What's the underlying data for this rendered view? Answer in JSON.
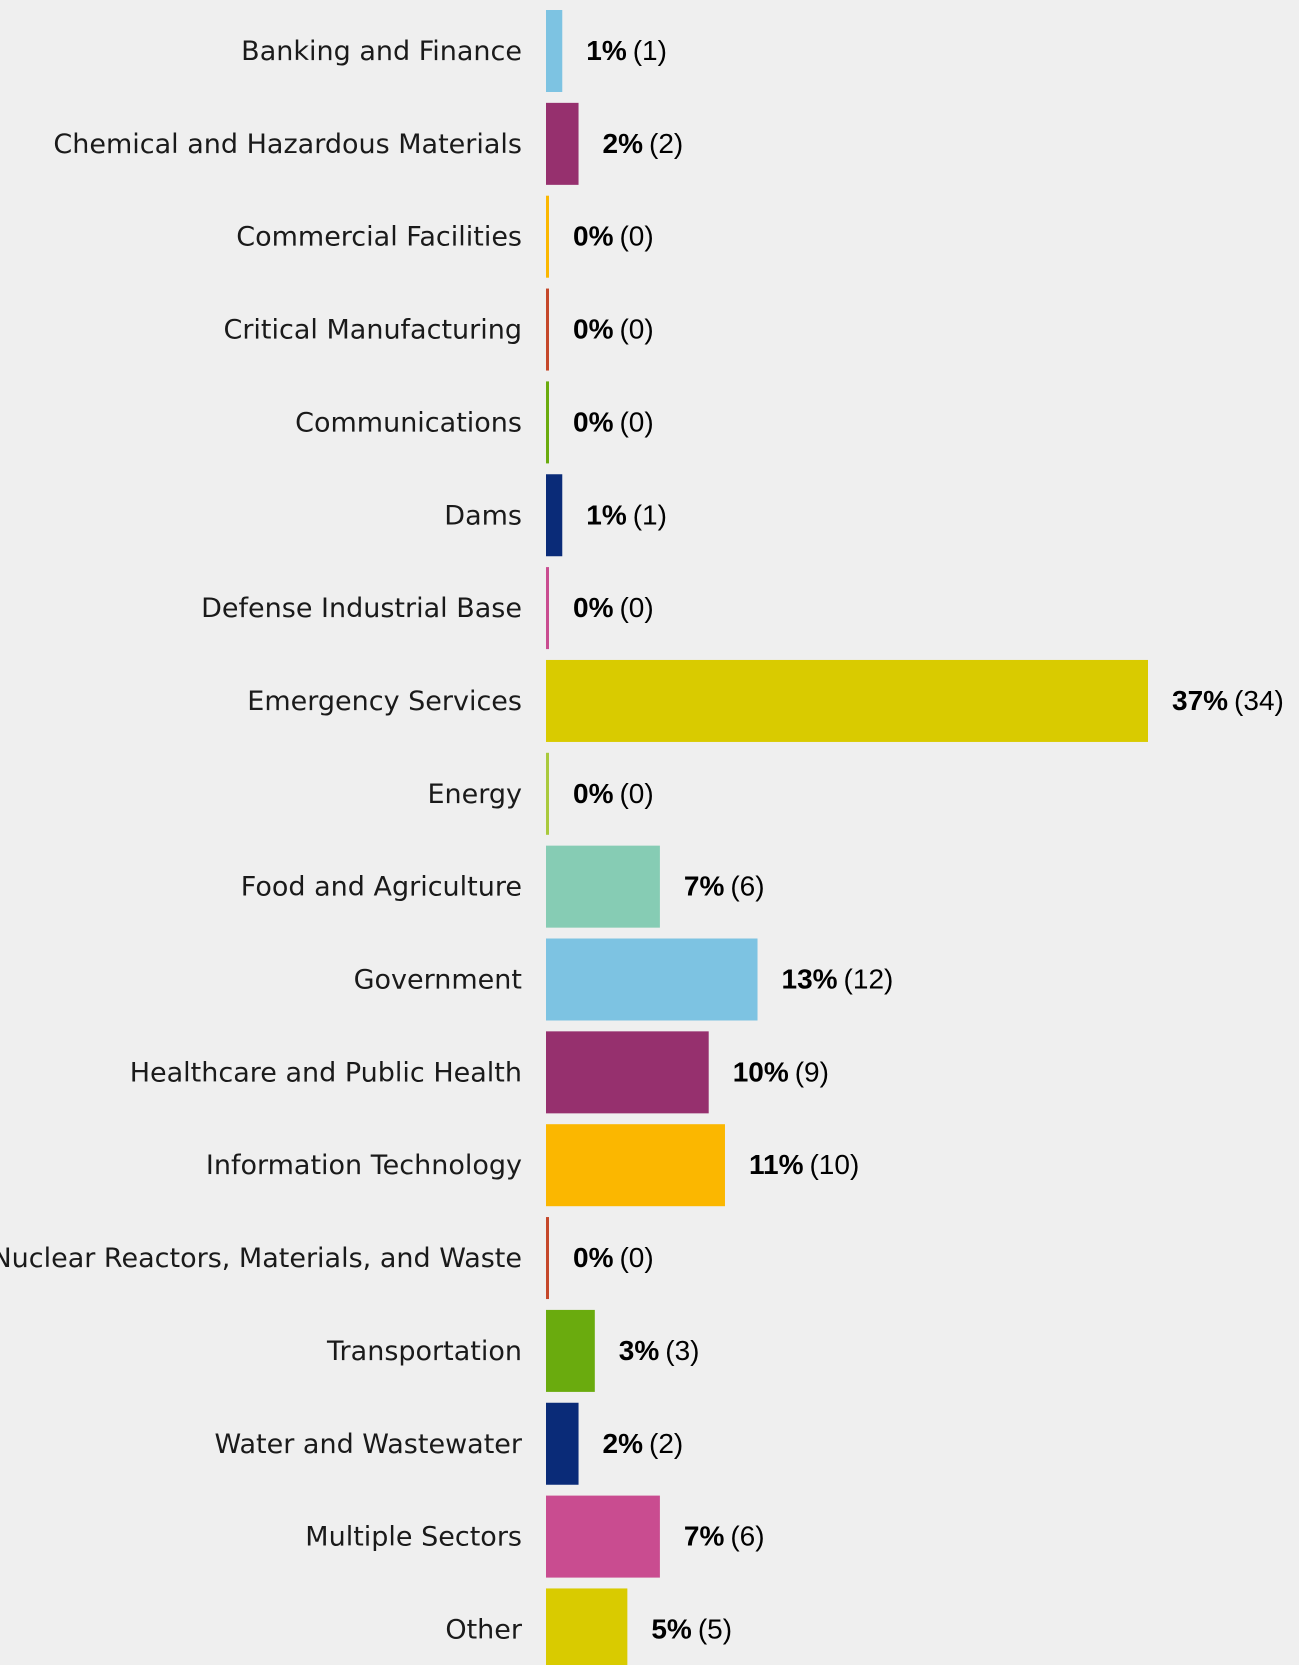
{
  "chart_data": {
    "type": "bar",
    "orientation": "horizontal",
    "title": "",
    "xlabel": "",
    "ylabel": "",
    "xlim": [
      0,
      37
    ],
    "grid": false,
    "legend": "none",
    "categories": [
      "Banking and Finance",
      "Chemical and Hazardous Materials",
      "Commercial Facilities",
      "Critical Manufacturing",
      "Communications",
      "Dams",
      "Defense Industrial Base",
      "Emergency Services",
      "Energy",
      "Food and Agriculture",
      "Government",
      "Healthcare and Public Health",
      "Information Technology",
      "Nuclear Reactors, Materials, and Waste",
      "Transportation",
      "Water and Wastewater",
      "Multiple Sectors",
      "Other"
    ],
    "values": [
      1,
      2,
      0,
      0,
      0,
      1,
      0,
      37,
      0,
      7,
      13,
      10,
      11,
      0,
      3,
      2,
      7,
      5
    ],
    "percent_labels": [
      "1%",
      "2%",
      "0%",
      "0%",
      "0%",
      "1%",
      "0%",
      "37%",
      "0%",
      "7%",
      "13%",
      "10%",
      "11%",
      "0%",
      "3%",
      "2%",
      "7%",
      "5%"
    ],
    "count_labels": [
      "(1)",
      "(2)",
      "(0)",
      "(0)",
      "(0)",
      "(1)",
      "(0)",
      "(34)",
      "(0)",
      "(6)",
      "(12)",
      "(9)",
      "(10)",
      "(0)",
      "(3)",
      "(2)",
      "(6)",
      "(5)"
    ],
    "colors": [
      "#7dc3e2",
      "#96306e",
      "#fbb700",
      "#c5472a",
      "#6aab0e",
      "#0a2b78",
      "#c94c90",
      "#d9cb00",
      "#a9c93c",
      "#86ccb4",
      "#7dc3e2",
      "#96306e",
      "#fbb700",
      "#c5472a",
      "#6aab0e",
      "#0a2b78",
      "#c94c90",
      "#d9cb00"
    ]
  }
}
